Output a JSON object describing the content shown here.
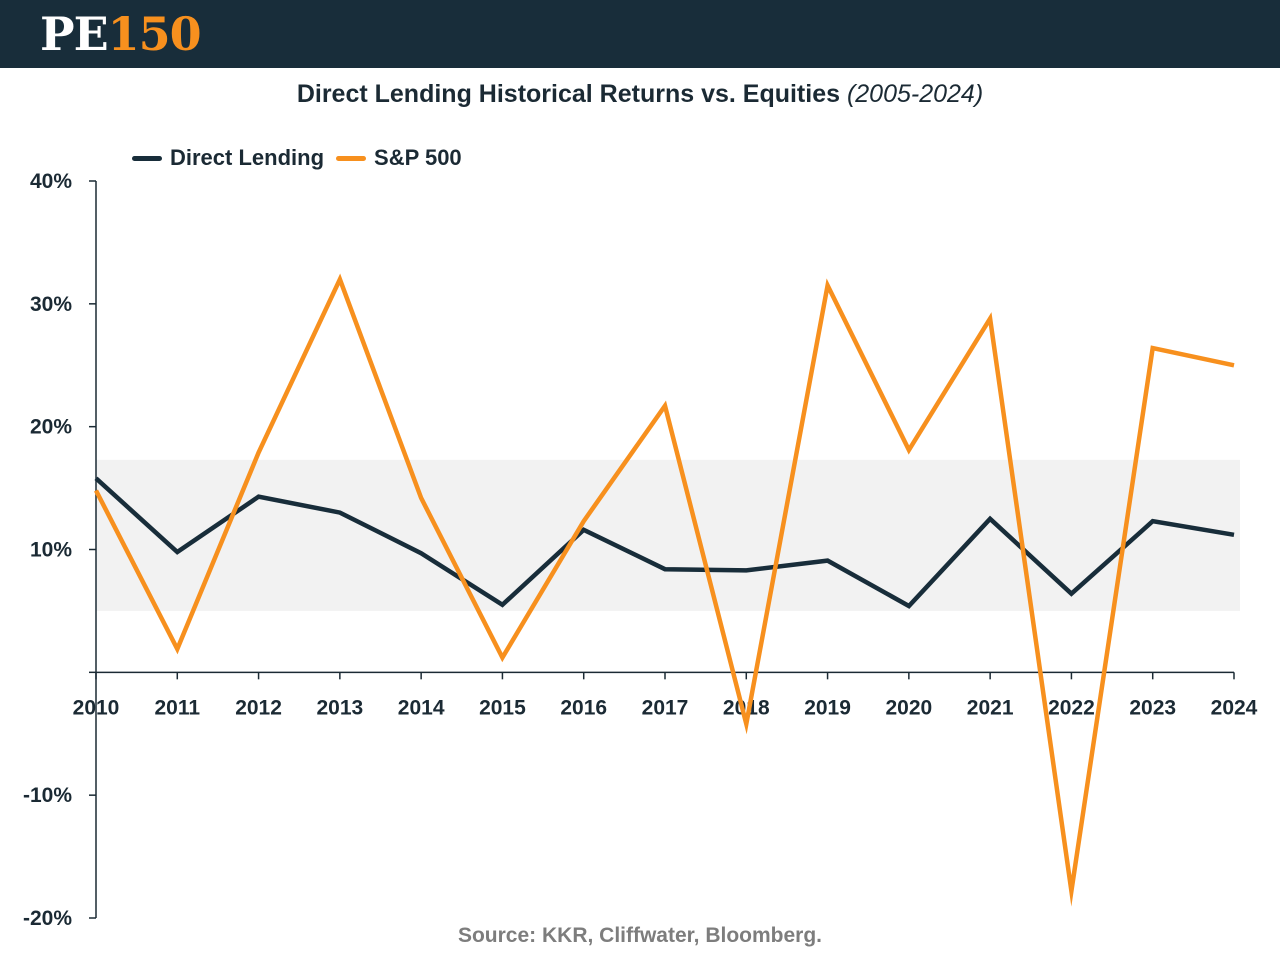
{
  "logo": {
    "part1": "PE",
    "part2": "150"
  },
  "title": {
    "main": "Direct Lending Historical Returns vs. Equities ",
    "sub": "(2005-2024)"
  },
  "source": "Source: KKR, Cliffwater, Bloomberg.",
  "colors": {
    "header_bg": "#182d3a",
    "accent": "#f7901e",
    "direct_lending": "#182d3a",
    "sp500": "#f7901e",
    "band": "#f2f2f2"
  },
  "chart_data": {
    "type": "line",
    "x": [
      2010,
      2011,
      2012,
      2013,
      2014,
      2015,
      2016,
      2017,
      2018,
      2019,
      2020,
      2021,
      2022,
      2023,
      2024
    ],
    "xtick_labels": [
      "2010",
      "2011",
      "2012",
      "2013",
      "2014",
      "2015",
      "2016",
      "2017",
      "2018",
      "2019",
      "2020",
      "2021",
      "2022",
      "2023",
      "2024"
    ],
    "series": [
      {
        "name": "Direct Lending",
        "color": "#182d3a",
        "values": [
          15.8,
          9.8,
          14.3,
          13.0,
          9.7,
          5.5,
          11.6,
          8.4,
          8.3,
          9.1,
          5.4,
          12.5,
          6.4,
          12.3,
          11.2
        ]
      },
      {
        "name": "S&P 500",
        "color": "#f7901e",
        "values": [
          14.8,
          1.9,
          17.9,
          32.0,
          14.2,
          1.2,
          12.3,
          21.7,
          -4.2,
          31.5,
          18.1,
          28.8,
          -17.8,
          26.4,
          25.0
        ]
      }
    ],
    "ylim": [
      -20,
      40
    ],
    "yticks": [
      40,
      30,
      20,
      10,
      -10,
      -20
    ],
    "ytick_labels": [
      "40%",
      "30%",
      "20%",
      "10%",
      "-10%",
      "-20%"
    ],
    "shaded_band": [
      5.0,
      17.3
    ],
    "legend": "top-left",
    "grid": false,
    "xlabel": "",
    "ylabel": ""
  }
}
